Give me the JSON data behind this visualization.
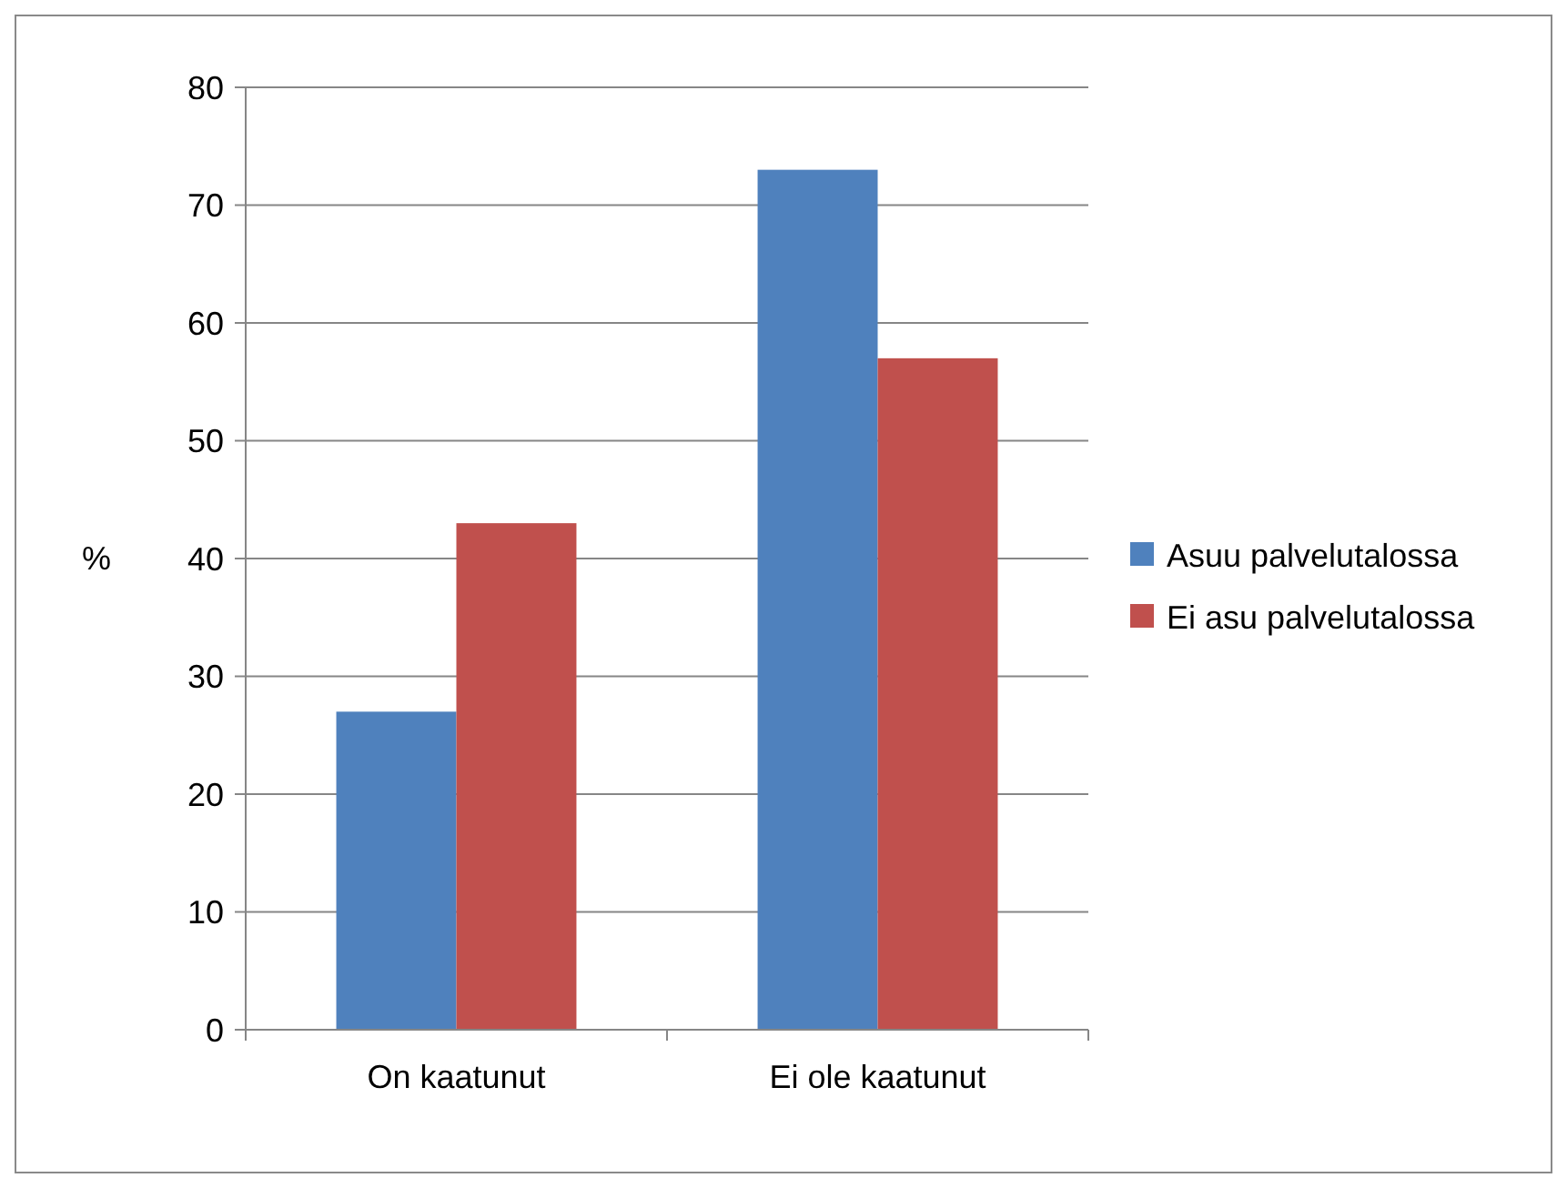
{
  "chart_data": {
    "type": "bar",
    "ylabel": "%",
    "categories": [
      "On kaatunut",
      "Ei ole kaatunut"
    ],
    "series": [
      {
        "name": "Asuu palvelutalossa",
        "color": "#4f81bd",
        "values": [
          27,
          73
        ]
      },
      {
        "name": "Ei asu palvelutalossa",
        "color": "#c0504d",
        "values": [
          43,
          57
        ]
      }
    ],
    "ylim": [
      0,
      80
    ],
    "yticks": [
      0,
      10,
      20,
      30,
      40,
      50,
      60,
      70,
      80
    ],
    "grid": "y",
    "legend": "right"
  }
}
